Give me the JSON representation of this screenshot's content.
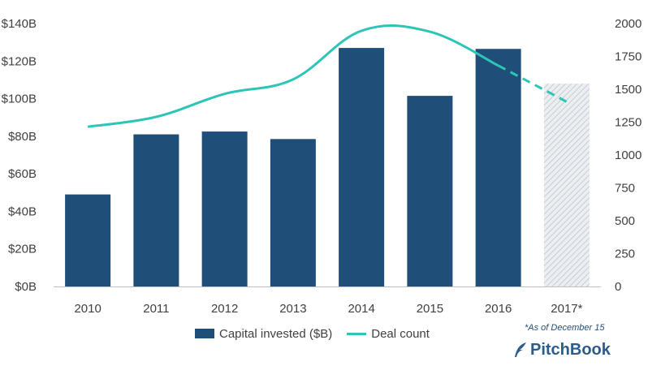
{
  "chart_data": {
    "type": "bar",
    "categories": [
      "2010",
      "2011",
      "2012",
      "2013",
      "2014",
      "2015",
      "2016",
      "2017*"
    ],
    "series": [
      {
        "name": "Capital invested ($B)",
        "type": "bar",
        "axis": "left",
        "values": [
          49,
          81,
          82.5,
          78.5,
          127,
          101.5,
          126.5,
          108
        ],
        "colors": [
          "#1f4e79",
          "#1f4e79",
          "#1f4e79",
          "#1f4e79",
          "#1f4e79",
          "#1f4e79",
          "#1f4e79",
          "#d6dbe0"
        ],
        "hatched": [
          false,
          false,
          false,
          false,
          false,
          false,
          false,
          true
        ]
      },
      {
        "name": "Deal count",
        "type": "line",
        "axis": "right",
        "values": [
          1215,
          1290,
          1465,
          1575,
          1945,
          1938,
          1680,
          1405
        ],
        "color": "#2ec4b6",
        "dashed_from_index": 6
      }
    ],
    "y_left": {
      "ylim": [
        0,
        140
      ],
      "ticks": [
        "$0B",
        "$20B",
        "$40B",
        "$60B",
        "$80B",
        "$100B",
        "$120B",
        "$140B"
      ]
    },
    "y_right": {
      "ylim": [
        0,
        2000
      ],
      "ticks": [
        "0",
        "250",
        "500",
        "750",
        "1000",
        "1250",
        "1500",
        "1750",
        "2000"
      ]
    },
    "grid": false,
    "legend_position": "bottom"
  },
  "legend": {
    "bar_label": "Capital invested ($B)",
    "line_label": "Deal count"
  },
  "footnote": "*As of December 15",
  "brand": "PitchBook",
  "colors": {
    "bar": "#1f4e79",
    "line": "#2ec4b6",
    "projected_bar": "#d6dbe0",
    "axis": "#bfbfbf",
    "text": "#404040"
  }
}
